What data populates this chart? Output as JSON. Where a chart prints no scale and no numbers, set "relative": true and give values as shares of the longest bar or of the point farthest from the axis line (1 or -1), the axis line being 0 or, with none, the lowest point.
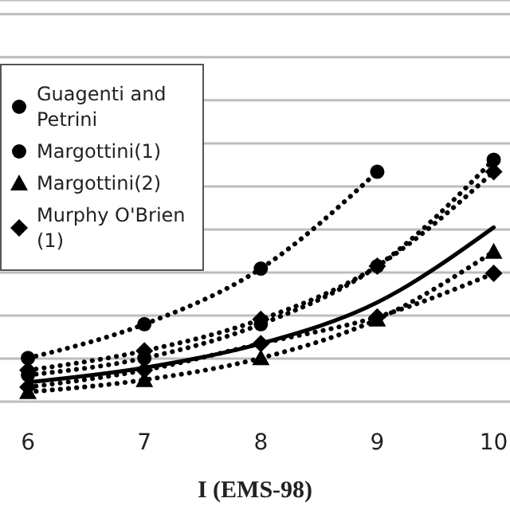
{
  "chart_data": {
    "type": "line",
    "xlabel": "I (EMS-98)",
    "x": [
      6,
      7,
      8,
      9,
      10
    ],
    "xlim": [
      5.76,
      10.14
    ],
    "xticks": [
      6,
      7,
      8,
      9,
      10
    ],
    "relative": true,
    "grid": "y",
    "legend": "top left",
    "series": [
      {
        "name": "Guagenti and Petrini",
        "color": "#000000",
        "marker": "circle",
        "line_style": "dotted",
        "values": [
          0.18,
          0.32,
          0.55,
          0.95,
          null
        ]
      },
      {
        "name": "Margottini(1)",
        "color": "#000000",
        "marker": "circle",
        "line_style": "dotted",
        "values": [
          0.11,
          0.18,
          0.32,
          0.56,
          1
        ]
      },
      {
        "color": "#000000",
        "marker": "diamond",
        "line_style": "dotted",
        "values": [
          0.13,
          0.21,
          0.34,
          0.56,
          0.95
        ]
      },
      {
        "name": "Margottini(2)",
        "color": "#000000",
        "marker": "triangle",
        "line_style": "dotted",
        "values": [
          0.04,
          0.09,
          0.18,
          0.34,
          0.62
        ]
      },
      {
        "color": "#000000",
        "marker": "none",
        "line_style": "solid",
        "values": [
          0.08,
          0.14,
          0.24,
          0.41,
          0.72
        ]
      },
      {
        "name": "Murphy O'Brien (1)",
        "color": "#000000",
        "marker": "diamond",
        "line_style": "dotted",
        "values": [
          0.06,
          0.13,
          0.24,
          0.35,
          0.53
        ]
      }
    ]
  }
}
